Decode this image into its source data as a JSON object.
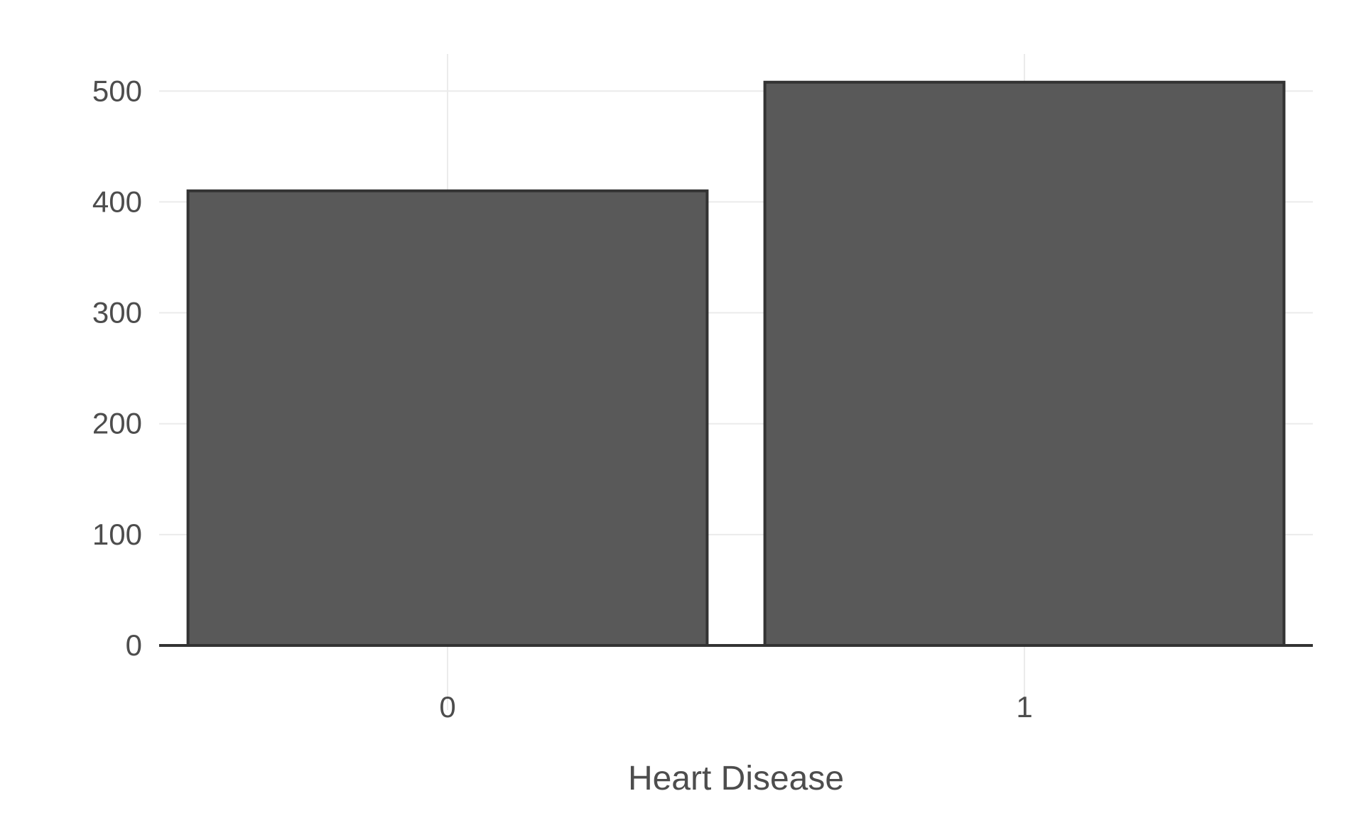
{
  "chart_data": {
    "type": "bar",
    "categories": [
      "0",
      "1"
    ],
    "values": [
      410,
      508
    ],
    "xlabel": "Heart Disease",
    "ylabel": "",
    "ylim": [
      0,
      540
    ],
    "yticks": [
      0,
      100,
      200,
      300,
      400,
      500
    ],
    "grid": true,
    "legend": "none",
    "colors": {
      "bar_fill": "#595959",
      "bar_outline": "#333333",
      "grid": "#ebebeb",
      "text": "#4d4d4d"
    }
  }
}
